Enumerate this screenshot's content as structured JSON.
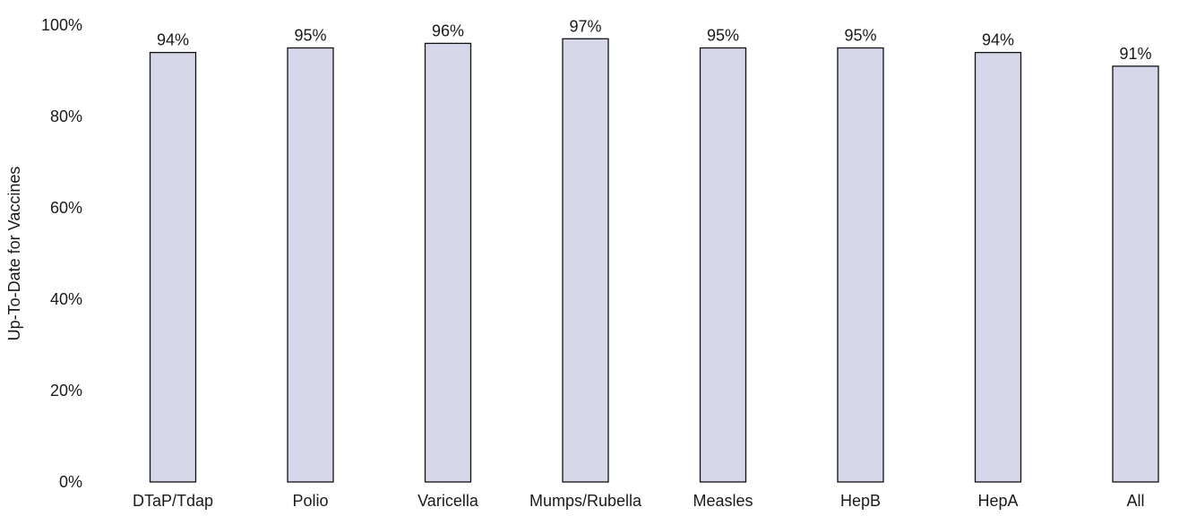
{
  "chart_data": {
    "type": "bar",
    "categories": [
      "DTaP/Tdap",
      "Polio",
      "Varicella",
      "Mumps/Rubella",
      "Measles",
      "HepB",
      "HepA",
      "All"
    ],
    "values": [
      94,
      95,
      96,
      97,
      95,
      95,
      94,
      91
    ],
    "value_labels": [
      "94%",
      "95%",
      "96%",
      "97%",
      "95%",
      "95%",
      "94%",
      "91%"
    ],
    "title": "",
    "xlabel": "",
    "ylabel": "Up-To-Date for Vaccines",
    "ylim": [
      0,
      100
    ],
    "yticks": [
      0,
      20,
      40,
      60,
      80,
      100
    ],
    "ytick_labels": [
      "0%",
      "20%",
      "40%",
      "60%",
      "80%",
      "100%"
    ],
    "grid": false,
    "legend": "none",
    "bar_color": "#d6d8ea",
    "bar_outline_color": "#111111"
  }
}
